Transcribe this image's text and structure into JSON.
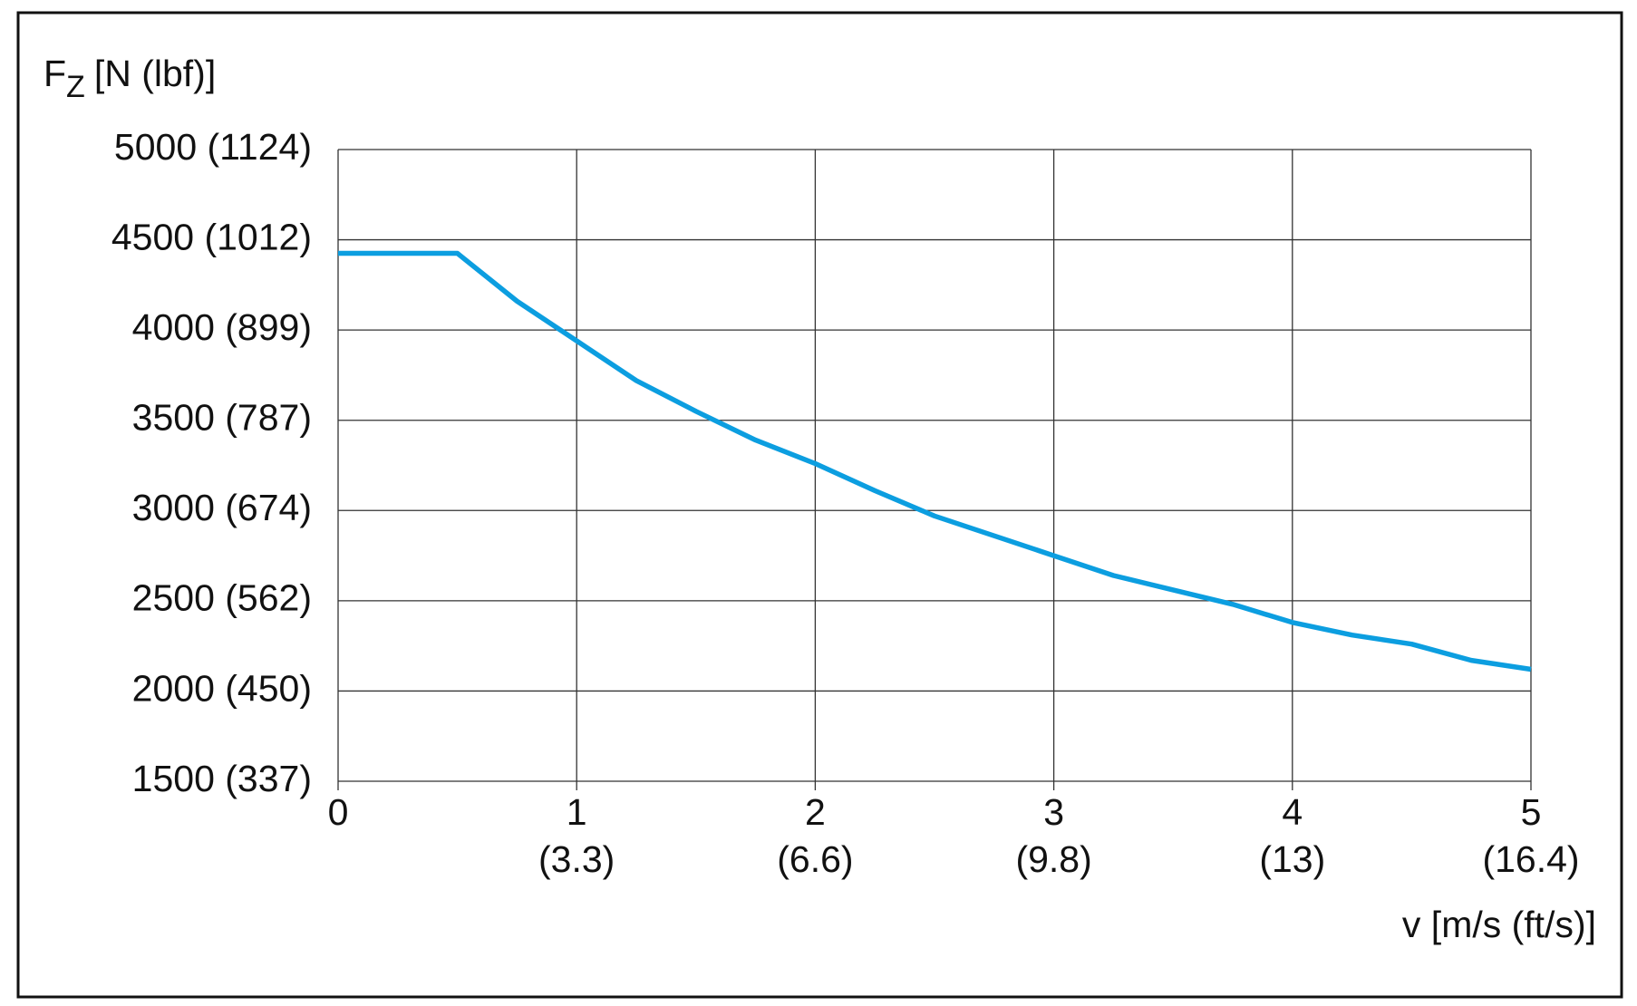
{
  "chart_data": {
    "type": "line",
    "y_label": {
      "main": "F",
      "sub": "Z",
      "unit": "[N (lbf)]"
    },
    "x_label": "v [m/s (ft/s)]",
    "x": [
      0,
      0.5,
      0.75,
      1.0,
      1.25,
      1.5,
      1.75,
      2.0,
      2.25,
      2.5,
      2.75,
      3.0,
      3.25,
      3.5,
      3.75,
      4.0,
      4.25,
      4.5,
      4.75,
      5.0
    ],
    "series": [
      {
        "color": "#0c9ee0",
        "values": [
          4425,
          4425,
          4160,
          3940,
          3720,
          3550,
          3390,
          3260,
          3110,
          2970,
          2860,
          2750,
          2640,
          2560,
          2480,
          2380,
          2310,
          2260,
          2170,
          2120
        ]
      }
    ],
    "xlim": [
      0,
      5
    ],
    "ylim": [
      1500,
      5000
    ],
    "xticks": [
      0,
      {
        "value": 1,
        "label": "1",
        "alt_label": "(3.3)"
      },
      {
        "value": 2,
        "label": "2",
        "alt_label": "(6.6)"
      },
      {
        "value": 3,
        "label": "3",
        "alt_label": "(9.8)"
      },
      {
        "value": 4,
        "label": "4",
        "alt_label": "(13)"
      },
      {
        "value": 5,
        "label": "5",
        "alt_label": "(16.4)"
      }
    ],
    "yticks": [
      {
        "value": 1500,
        "label": "1500 (337)"
      },
      {
        "value": 2000,
        "label": "2000 (450)"
      },
      {
        "value": 2500,
        "label": "2500 (562)"
      },
      {
        "value": 3000,
        "label": "3000 (674)"
      },
      {
        "value": 3500,
        "label": "3500 (787)"
      },
      {
        "value": 4000,
        "label": "4000 (899)"
      },
      {
        "value": 4500,
        "label": "4500 (1012)"
      },
      {
        "value": 5000,
        "label": "5000 (1124)"
      }
    ],
    "grid": true
  }
}
